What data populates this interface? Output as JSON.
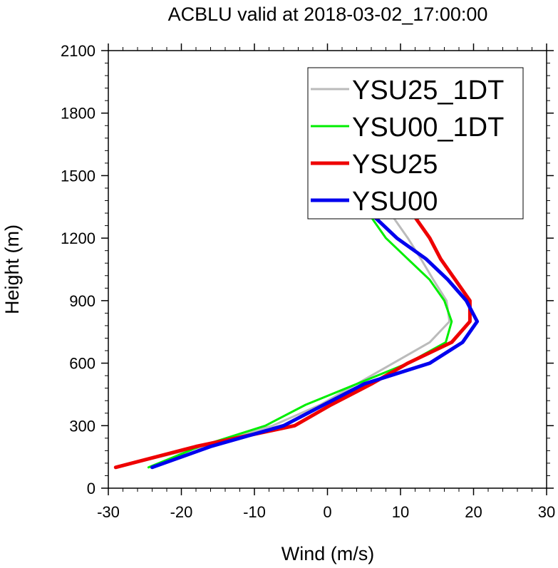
{
  "chart_data": {
    "type": "line",
    "title": "ACBLU valid at 2018-03-02_17:00:00",
    "xlabel": "Wind (m/s)",
    "ylabel": "Height (m)",
    "xlim": [
      -30,
      30
    ],
    "ylim": [
      0,
      2100
    ],
    "xticks": [
      -30,
      -20,
      -10,
      0,
      10,
      20,
      30
    ],
    "yticks": [
      0,
      300,
      600,
      900,
      1200,
      1500,
      1800,
      2100
    ],
    "xtick_labels": [
      "-30",
      "-20",
      "-10",
      "0",
      "10",
      "20",
      "30"
    ],
    "ytick_labels": [
      "0",
      "300",
      "600",
      "900",
      "1200",
      "1500",
      "1800",
      "2100"
    ],
    "legend_position": "top-right",
    "series": [
      {
        "name": "YSU25_1DT",
        "color": "#bbbbbb",
        "width": 3,
        "points": [
          [
            -29,
            100
          ],
          [
            -17,
            200
          ],
          [
            -7.5,
            300
          ],
          [
            -1,
            400
          ],
          [
            4,
            500
          ],
          [
            9,
            600
          ],
          [
            14,
            700
          ],
          [
            16.7,
            800
          ],
          [
            16.3,
            900
          ],
          [
            14.5,
            1000
          ],
          [
            12.8,
            1100
          ],
          [
            11,
            1200
          ],
          [
            9,
            1300
          ],
          [
            7,
            1400
          ],
          [
            5.2,
            1500
          ],
          [
            3.7,
            1600
          ],
          [
            2.5,
            1700
          ],
          [
            1.6,
            1800
          ],
          [
            1,
            1900
          ],
          [
            0.7,
            2000
          ]
        ]
      },
      {
        "name": "YSU00_1DT",
        "color": "#00ee00",
        "width": 3,
        "points": [
          [
            -24.5,
            100
          ],
          [
            -17.5,
            200
          ],
          [
            -8.5,
            300
          ],
          [
            -3,
            400
          ],
          [
            4,
            500
          ],
          [
            11,
            600
          ],
          [
            16.2,
            700
          ],
          [
            17,
            800
          ],
          [
            16,
            900
          ],
          [
            14,
            1000
          ],
          [
            11,
            1100
          ],
          [
            8,
            1200
          ],
          [
            6,
            1300
          ],
          [
            4.2,
            1400
          ],
          [
            2.8,
            1500
          ],
          [
            1.8,
            1600
          ],
          [
            1.1,
            1700
          ],
          [
            0.7,
            1800
          ],
          [
            0.4,
            1900
          ],
          [
            0.4,
            2000
          ]
        ]
      },
      {
        "name": "YSU25",
        "color": "#ee0000",
        "width": 5,
        "points": [
          [
            -29,
            100
          ],
          [
            -18,
            200
          ],
          [
            -4.5,
            300
          ],
          [
            0.5,
            400
          ],
          [
            6,
            500
          ],
          [
            11,
            600
          ],
          [
            17,
            700
          ],
          [
            19.5,
            800
          ],
          [
            19.5,
            900
          ],
          [
            17.5,
            1000
          ],
          [
            15.5,
            1100
          ],
          [
            14,
            1200
          ],
          [
            12,
            1300
          ],
          [
            10,
            1400
          ],
          [
            8,
            1500
          ],
          [
            6,
            1600
          ],
          [
            4.2,
            1700
          ],
          [
            3,
            1800
          ],
          [
            2.2,
            1900
          ],
          [
            1.7,
            2000
          ]
        ]
      },
      {
        "name": "YSU00",
        "color": "#0000ee",
        "width": 5,
        "points": [
          [
            -24,
            100
          ],
          [
            -16,
            200
          ],
          [
            -6,
            300
          ],
          [
            -0.5,
            400
          ],
          [
            5,
            500
          ],
          [
            14,
            600
          ],
          [
            18.5,
            700
          ],
          [
            20.5,
            800
          ],
          [
            19,
            900
          ],
          [
            16.5,
            1000
          ],
          [
            13.5,
            1100
          ],
          [
            9.5,
            1200
          ],
          [
            6.5,
            1300
          ],
          [
            5,
            1400
          ],
          [
            3.8,
            1500
          ],
          [
            2.7,
            1600
          ],
          [
            1.9,
            1700
          ],
          [
            1.4,
            1800
          ],
          [
            1.1,
            1900
          ],
          [
            0.9,
            2000
          ]
        ]
      }
    ]
  }
}
